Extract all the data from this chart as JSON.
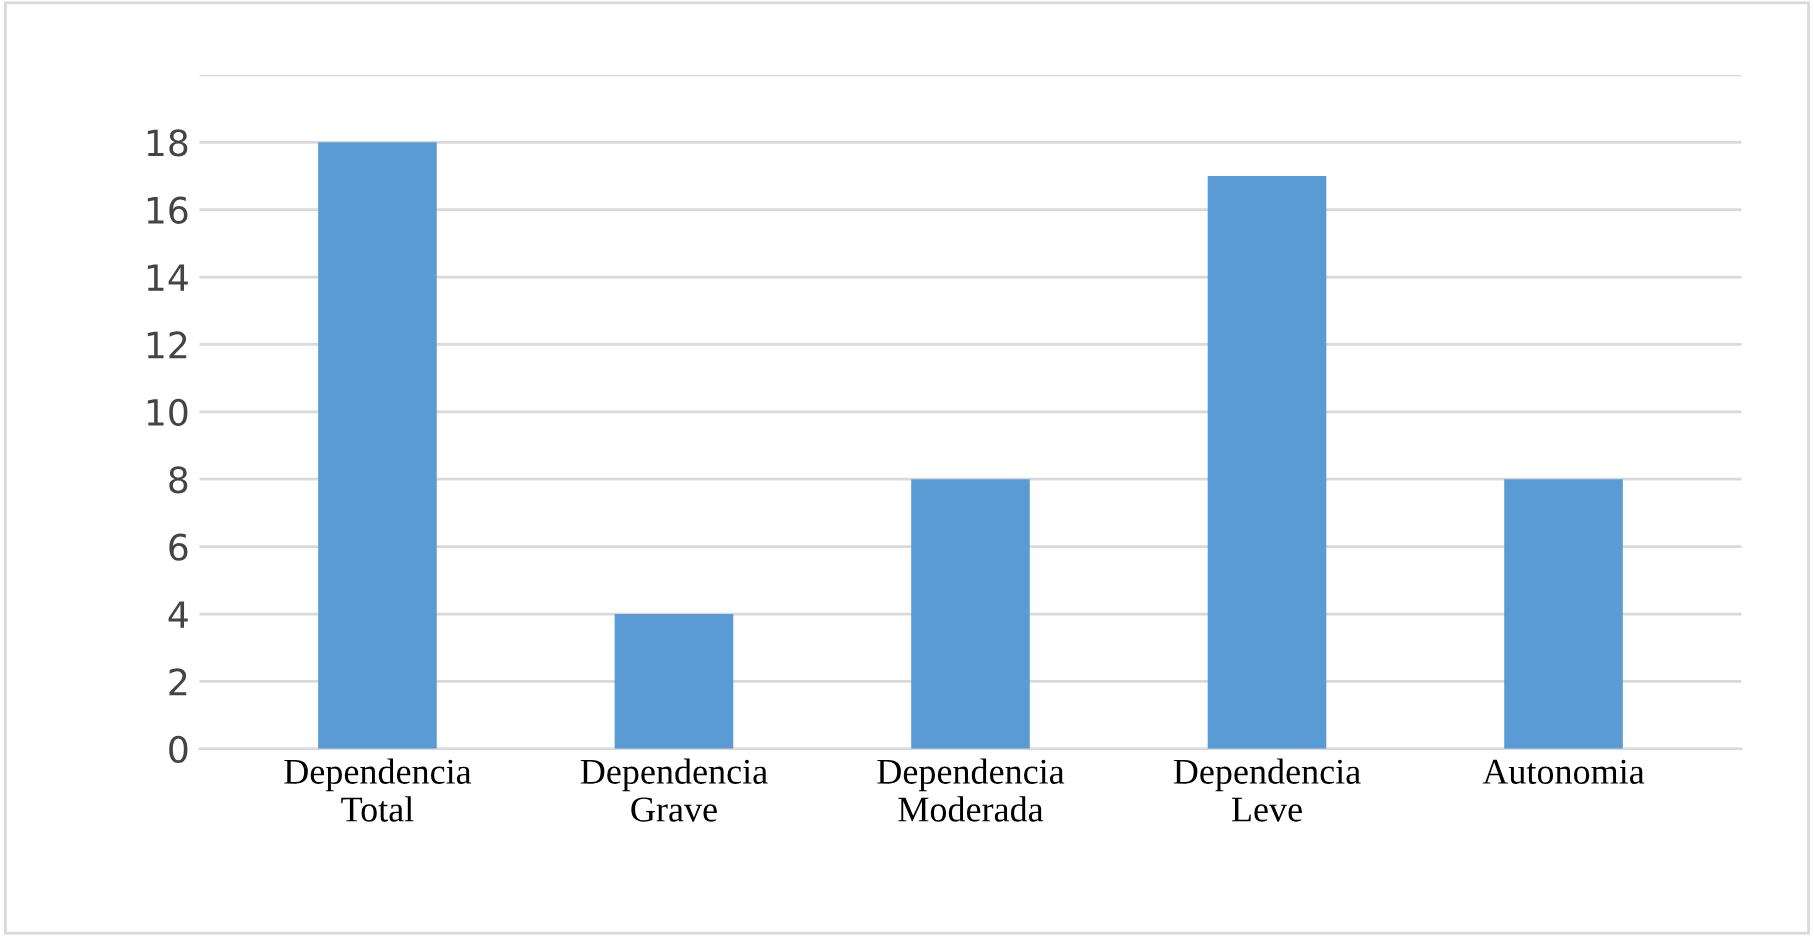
{
  "chart_data": {
    "type": "bar",
    "categories": [
      "Dependencia\nTotal",
      "Dependencia\nGrave",
      "Dependencia\nModerada",
      "Dependencia\nLeve",
      "Autonomia"
    ],
    "values": [
      18,
      4,
      8,
      17,
      8
    ],
    "color": "#5b9bd5",
    "ylim": [
      0,
      20
    ],
    "yticks": [
      0,
      2,
      4,
      6,
      8,
      10,
      12,
      14,
      16,
      18,
      {
        "value": 20,
        "label": null
      }
    ],
    "grid": "y"
  }
}
